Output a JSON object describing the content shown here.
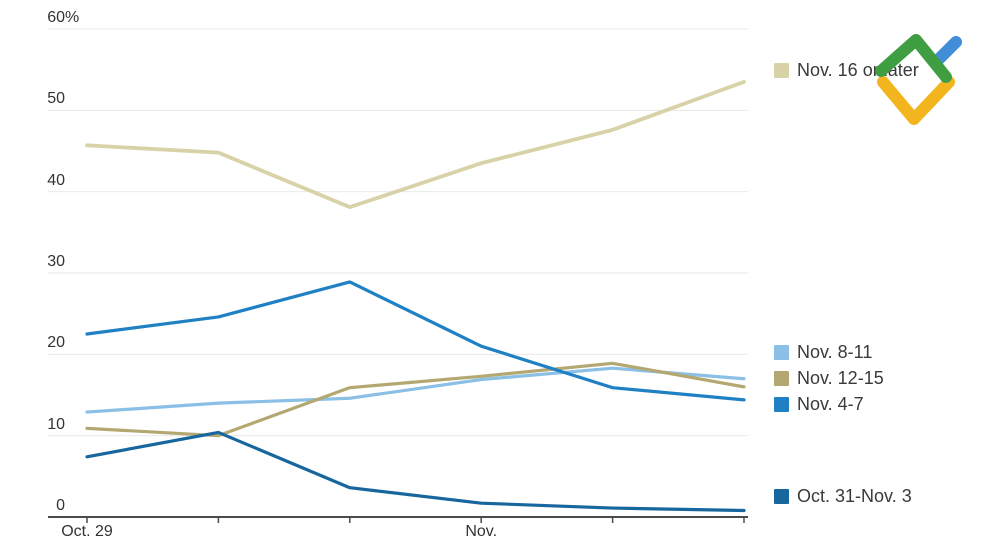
{
  "chart_data": {
    "type": "line",
    "title": "",
    "x_tick_labels": [
      "Oct. 29",
      "",
      "",
      "Nov.",
      "",
      ""
    ],
    "y_ticks": [
      0,
      10,
      20,
      30,
      40,
      50,
      60
    ],
    "y_suffix": "%",
    "ylim": [
      0,
      60
    ],
    "grid": true,
    "legend_position": "right",
    "draw_order": [
      1,
      2,
      0,
      3,
      4
    ],
    "series": [
      {
        "name": "Nov. 16 or later",
        "color": "#d8d2a8",
        "width": 3.8,
        "values": [
          45.7,
          44.8,
          38.1,
          43.5,
          47.6,
          53.5
        ]
      },
      {
        "name": "Nov. 8-11",
        "color": "#8ac0e5",
        "width": 3.2,
        "values": [
          12.9,
          14.0,
          14.6,
          16.9,
          18.3,
          17.0
        ]
      },
      {
        "name": "Nov. 12-15",
        "color": "#b3a871",
        "width": 3.2,
        "values": [
          10.9,
          10.0,
          15.9,
          17.3,
          18.9,
          16.0
        ]
      },
      {
        "name": "Nov. 4-7",
        "color": "#1f80c4",
        "width": 3.2,
        "values": [
          22.5,
          24.6,
          28.9,
          21.0,
          15.9,
          14.4
        ]
      },
      {
        "name": "Oct. 31-Nov. 3",
        "color": "#17669e",
        "width": 3.2,
        "values": [
          7.4,
          10.4,
          3.6,
          1.7,
          1.1,
          0.8
        ]
      }
    ],
    "axis_color": "#4a4a4a",
    "gridline_color": "#e9e9e9"
  },
  "logo": {
    "icon": "checkmark-brand-logo",
    "green": "#3f9e41",
    "yellow": "#f2b51e",
    "blue": "#428dd8"
  }
}
